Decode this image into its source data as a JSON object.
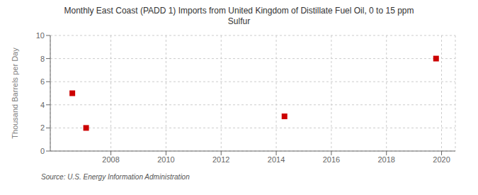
{
  "chart_data": {
    "type": "scatter",
    "title": "Monthly East Coast (PADD 1) Imports from United Kingdom of Distillate Fuel Oil, 0 to 15 ppm\nSulfur",
    "ylabel": "Thousand Barrels per Day",
    "annotation": "Source: U.S. Energy Information Administration",
    "x": [
      2006.6,
      2007.1,
      2014.3,
      2019.8
    ],
    "values": [
      5.0,
      2.0,
      3.0,
      8.0
    ],
    "color": "#cc0000",
    "marker": "square",
    "xlim": [
      2005.8,
      2020.5
    ],
    "ylim": [
      0,
      10
    ],
    "xticks": [
      2008,
      2010,
      2012,
      2014,
      2016,
      2018,
      2020
    ],
    "yticks": [
      0,
      2,
      4,
      6,
      8,
      10
    ],
    "grid": true
  }
}
